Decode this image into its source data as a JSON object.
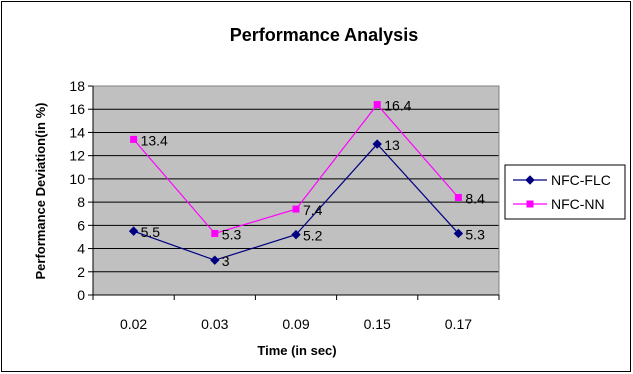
{
  "chart_data": {
    "type": "line",
    "title": "Performance Analysis",
    "xlabel": "Time (in sec)",
    "ylabel": "Performance Deviation(in %)",
    "categories": [
      "0.02",
      "0.03",
      "0.09",
      "0.15",
      "0.17"
    ],
    "ylim": [
      0,
      18
    ],
    "ytick_step": 2,
    "grid": true,
    "legend_position": "right",
    "series": [
      {
        "name": "NFC-FLC",
        "values": [
          5.5,
          3,
          5.2,
          13,
          5.3
        ],
        "labels": [
          "5.5",
          "3",
          "5.2",
          "13",
          "5.3"
        ],
        "color": "#000080",
        "marker": "diamond"
      },
      {
        "name": "NFC-NN",
        "values": [
          13.4,
          5.3,
          7.4,
          16.4,
          8.4
        ],
        "labels": [
          "13.4",
          "5.3",
          "7.4",
          "16.4",
          "8.4"
        ],
        "color": "#ff00ff",
        "marker": "square"
      }
    ],
    "plot_background": "#c0c0c0"
  }
}
